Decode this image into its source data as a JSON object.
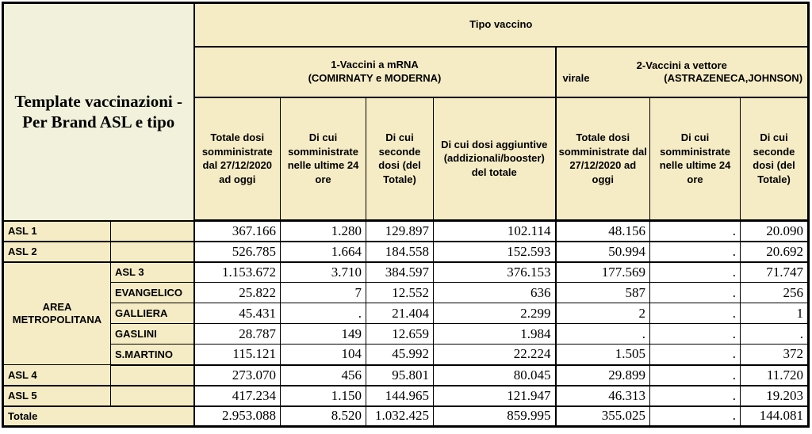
{
  "colors": {
    "header_bg": "#f5ecc5",
    "title_bg": "#f1f1dc",
    "cell_bg": "#ffffff",
    "border": "#000000",
    "text": "#000000"
  },
  "chart_data": {
    "type": "table",
    "title": "Template vaccinazioni - Per Brand ASL e tipo",
    "top_header": "Tipo vaccino",
    "groups": {
      "mrna": {
        "line1": "1-Vaccini a mRNA",
        "line2": "(COMIRNATY e MODERNA)"
      },
      "viral_vector": {
        "line1": "2-Vaccini a vettore",
        "left": "virale",
        "right": "(ASTRAZENECA,JOHNSON)"
      }
    },
    "columns": [
      "Totale dosi somministrate dal 27/12/2020 ad oggi",
      "Di cui somministrate nelle ultime 24 ore",
      "Di cui seconde dosi (del Totale)",
      "Di cui dosi aggiuntive (addizionali/booster) del totale",
      "Totale dosi somministrate dal 27/12/2020 ad oggi",
      "Di cui somministrate nelle ultime 24 ore",
      "Di cui seconde dosi (del Totale)"
    ],
    "rows": [
      {
        "group": "ASL 1",
        "sub": "",
        "values": [
          "367.166",
          "1.280",
          "129.897",
          "102.114",
          "48.156",
          ".",
          "20.090"
        ]
      },
      {
        "group": "ASL 2",
        "sub": "",
        "values": [
          "526.785",
          "1.664",
          "184.558",
          "152.593",
          "50.994",
          ".",
          "20.692"
        ]
      },
      {
        "group": "AREA METROPOLITANA",
        "sub": "ASL 3",
        "values": [
          "1.153.672",
          "3.710",
          "384.597",
          "376.153",
          "177.569",
          ".",
          "71.747"
        ]
      },
      {
        "sub": "EVANGELICO",
        "values": [
          "25.822",
          "7",
          "12.552",
          "636",
          "587",
          ".",
          "256"
        ]
      },
      {
        "sub": "GALLIERA",
        "values": [
          "45.431",
          ".",
          "21.404",
          "2.299",
          "2",
          ".",
          "1"
        ]
      },
      {
        "sub": "GASLINI",
        "values": [
          "28.787",
          "149",
          "12.659",
          "1.984",
          ".",
          ".",
          "."
        ]
      },
      {
        "sub": "S.MARTINO",
        "values": [
          "115.121",
          "104",
          "45.992",
          "22.224",
          "1.505",
          ".",
          "372"
        ]
      },
      {
        "group": "ASL 4",
        "sub": "",
        "values": [
          "273.070",
          "456",
          "95.801",
          "80.045",
          "29.899",
          ".",
          "11.720"
        ]
      },
      {
        "group": "ASL 5",
        "sub": "",
        "values": [
          "417.234",
          "1.150",
          "144.965",
          "121.947",
          "46.313",
          ".",
          "19.203"
        ]
      },
      {
        "group": "Totale",
        "values": [
          "2.953.088",
          "8.520",
          "1.032.425",
          "859.995",
          "355.025",
          ".",
          "144.081"
        ]
      }
    ]
  }
}
